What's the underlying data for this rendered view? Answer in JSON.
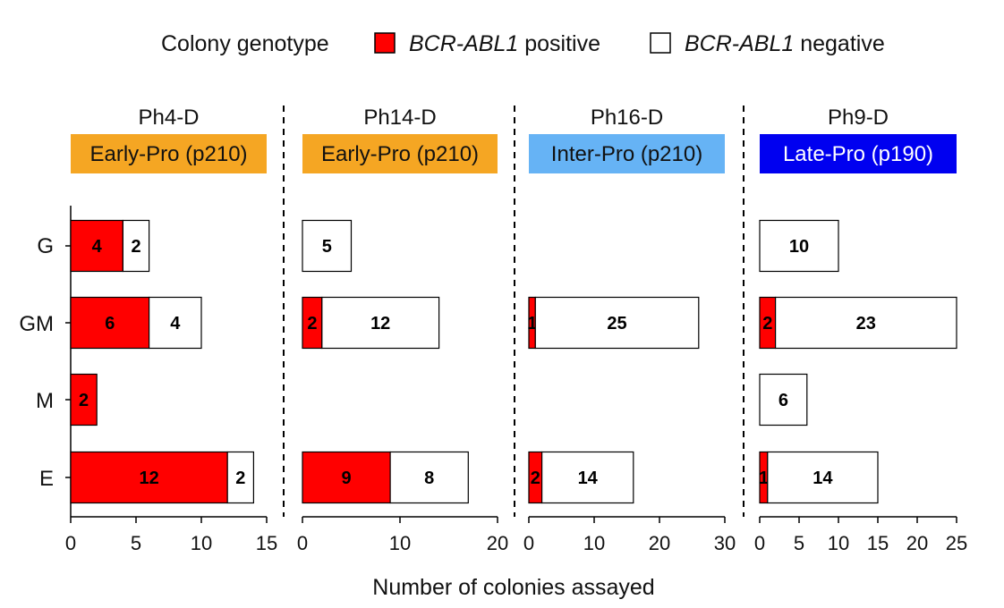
{
  "chart_data": {
    "type": "bar",
    "orientation": "horizontal",
    "stacked": true,
    "legend": {
      "title": "Colony genotype",
      "entries": [
        {
          "name_italic": "BCR-ABL1",
          "name_suffix": " positive",
          "color": "#ff0000",
          "key": "positive"
        },
        {
          "name_italic": "BCR-ABL1",
          "name_suffix": " negative",
          "color": "#ffffff",
          "key": "negative"
        }
      ],
      "placement": "top"
    },
    "categories": [
      "G",
      "GM",
      "M",
      "E"
    ],
    "xlabel": "Number of colonies assayed",
    "panels": [
      {
        "title": "Ph4-D",
        "badge": {
          "text": "Early-Pro (p210)",
          "bg": "#f5a623",
          "fg": "#111111"
        },
        "xlim": [
          0,
          15
        ],
        "ticks": [
          0,
          5,
          10,
          15
        ],
        "positive": [
          4,
          6,
          2,
          12
        ],
        "negative": [
          2,
          4,
          0,
          2
        ]
      },
      {
        "title": "Ph14-D",
        "badge": {
          "text": "Early-Pro (p210)",
          "bg": "#f5a623",
          "fg": "#111111"
        },
        "xlim": [
          0,
          20
        ],
        "ticks": [
          0,
          10,
          20
        ],
        "positive": [
          0,
          2,
          0,
          9
        ],
        "negative": [
          5,
          12,
          0,
          8
        ]
      },
      {
        "title": "Ph16-D",
        "badge": {
          "text": "Inter-Pro (p210)",
          "bg": "#66b3f5",
          "fg": "#111111"
        },
        "xlim": [
          0,
          30
        ],
        "ticks": [
          0,
          10,
          20,
          30
        ],
        "positive": [
          0,
          1,
          0,
          2
        ],
        "negative": [
          0,
          25,
          0,
          14
        ]
      },
      {
        "title": "Ph9-D",
        "badge": {
          "text": "Late-Pro (p190)",
          "bg": "#0000f0",
          "fg": "#ffffff"
        },
        "xlim": [
          0,
          25
        ],
        "ticks": [
          0,
          5,
          10,
          15,
          20,
          25
        ],
        "positive": [
          0,
          2,
          0,
          1
        ],
        "negative": [
          10,
          23,
          6,
          14
        ]
      }
    ]
  }
}
